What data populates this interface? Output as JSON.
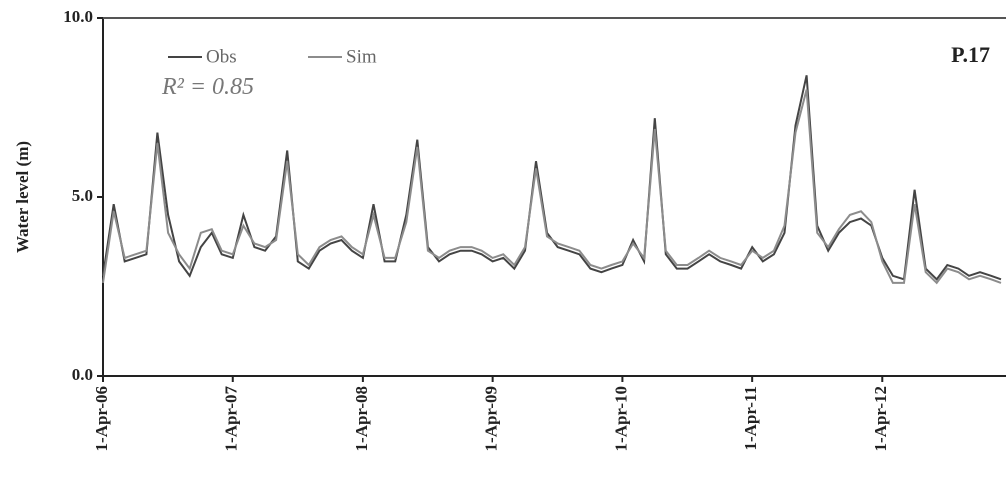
{
  "chart_data": {
    "type": "line",
    "ylabel": "Water level (m)",
    "annotations": [
      "R² = 0.85",
      "P.17"
    ],
    "x": [
      "2006-04-01",
      "2006-05-01",
      "2006-06-01",
      "2006-07-01",
      "2006-08-01",
      "2006-09-01",
      "2006-10-01",
      "2006-11-01",
      "2006-12-01",
      "2007-01-01",
      "2007-02-01",
      "2007-03-01",
      "2007-04-01",
      "2007-05-01",
      "2007-06-01",
      "2007-07-01",
      "2007-08-01",
      "2007-09-01",
      "2007-10-01",
      "2007-11-01",
      "2007-12-01",
      "2008-01-01",
      "2008-02-01",
      "2008-03-01",
      "2008-04-01",
      "2008-05-01",
      "2008-06-01",
      "2008-07-01",
      "2008-08-01",
      "2008-09-01",
      "2008-10-01",
      "2008-11-01",
      "2008-12-01",
      "2009-01-01",
      "2009-02-01",
      "2009-03-01",
      "2009-04-01",
      "2009-05-01",
      "2009-06-01",
      "2009-07-01",
      "2009-08-01",
      "2009-09-01",
      "2009-10-01",
      "2009-11-01",
      "2009-12-01",
      "2010-01-01",
      "2010-02-01",
      "2010-03-01",
      "2010-04-01",
      "2010-05-01",
      "2010-06-01",
      "2010-07-01",
      "2010-08-01",
      "2010-09-01",
      "2010-10-01",
      "2010-11-01",
      "2010-12-01",
      "2011-01-01",
      "2011-02-01",
      "2011-03-01",
      "2011-04-01",
      "2011-05-01",
      "2011-06-01",
      "2011-07-01",
      "2011-08-01",
      "2011-09-01",
      "2011-10-01",
      "2011-11-01",
      "2011-12-01",
      "2012-01-01",
      "2012-02-01",
      "2012-03-01",
      "2012-04-01",
      "2012-05-01",
      "2012-06-01",
      "2012-07-01",
      "2012-08-01",
      "2012-09-01",
      "2012-10-01",
      "2012-11-01",
      "2012-12-01",
      "2013-01-01",
      "2013-02-01",
      "2013-03-01"
    ],
    "series": [
      {
        "name": "Obs",
        "color": "#444444",
        "values": [
          2.8,
          4.8,
          3.2,
          3.3,
          3.4,
          6.8,
          4.5,
          3.2,
          2.8,
          3.6,
          4.0,
          3.4,
          3.3,
          4.5,
          3.6,
          3.5,
          3.9,
          6.3,
          3.2,
          3.0,
          3.5,
          3.7,
          3.8,
          3.5,
          3.3,
          4.8,
          3.2,
          3.2,
          4.5,
          6.6,
          3.6,
          3.2,
          3.4,
          3.5,
          3.5,
          3.4,
          3.2,
          3.3,
          3.0,
          3.5,
          6.0,
          4.0,
          3.6,
          3.5,
          3.4,
          3.0,
          2.9,
          3.0,
          3.1,
          3.8,
          3.2,
          7.2,
          3.4,
          3.0,
          3.0,
          3.2,
          3.4,
          3.2,
          3.1,
          3.0,
          3.6,
          3.2,
          3.4,
          4.0,
          7.0,
          8.4,
          4.2,
          3.5,
          4.0,
          4.3,
          4.4,
          4.2,
          3.3,
          2.8,
          2.7,
          5.2,
          3.0,
          2.7,
          3.1,
          3.0,
          2.8,
          2.9,
          2.8,
          2.7
        ]
      },
      {
        "name": "Sim",
        "color": "#8c8c8c",
        "values": [
          2.6,
          4.6,
          3.3,
          3.4,
          3.5,
          6.5,
          4.0,
          3.4,
          3.0,
          4.0,
          4.1,
          3.5,
          3.4,
          4.2,
          3.7,
          3.6,
          3.8,
          6.0,
          3.4,
          3.1,
          3.6,
          3.8,
          3.9,
          3.6,
          3.4,
          4.5,
          3.3,
          3.3,
          4.3,
          6.4,
          3.5,
          3.3,
          3.5,
          3.6,
          3.6,
          3.5,
          3.3,
          3.4,
          3.1,
          3.6,
          5.8,
          3.9,
          3.7,
          3.6,
          3.5,
          3.1,
          3.0,
          3.1,
          3.2,
          3.7,
          3.3,
          6.9,
          3.5,
          3.1,
          3.1,
          3.3,
          3.5,
          3.3,
          3.2,
          3.1,
          3.5,
          3.3,
          3.5,
          4.2,
          6.8,
          8.0,
          4.0,
          3.6,
          4.1,
          4.5,
          4.6,
          4.3,
          3.2,
          2.6,
          2.6,
          4.8,
          2.9,
          2.6,
          3.0,
          2.9,
          2.7,
          2.8,
          2.7,
          2.6
        ]
      }
    ],
    "xlim": [
      "2006-04-01",
      "2013-03-15"
    ],
    "xticks": [
      {
        "value": "2006-04-01",
        "label": "1-Apr-06"
      },
      {
        "value": "2007-04-01",
        "label": "1-Apr-07"
      },
      {
        "value": "2008-04-01",
        "label": "1-Apr-08"
      },
      {
        "value": "2009-04-01",
        "label": "1-Apr-09"
      },
      {
        "value": "2010-04-01",
        "label": "1-Apr-10"
      },
      {
        "value": "2011-04-01",
        "label": "1-Apr-11"
      },
      {
        "value": "2012-04-01",
        "label": "1-Apr-12"
      }
    ],
    "ylim": [
      0,
      10
    ],
    "yticks": [
      {
        "value": 0,
        "label": "0.0"
      },
      {
        "value": 5,
        "label": "5.0"
      },
      {
        "value": 10,
        "label": "10.0"
      }
    ],
    "grid": false,
    "legend": "upper left"
  }
}
